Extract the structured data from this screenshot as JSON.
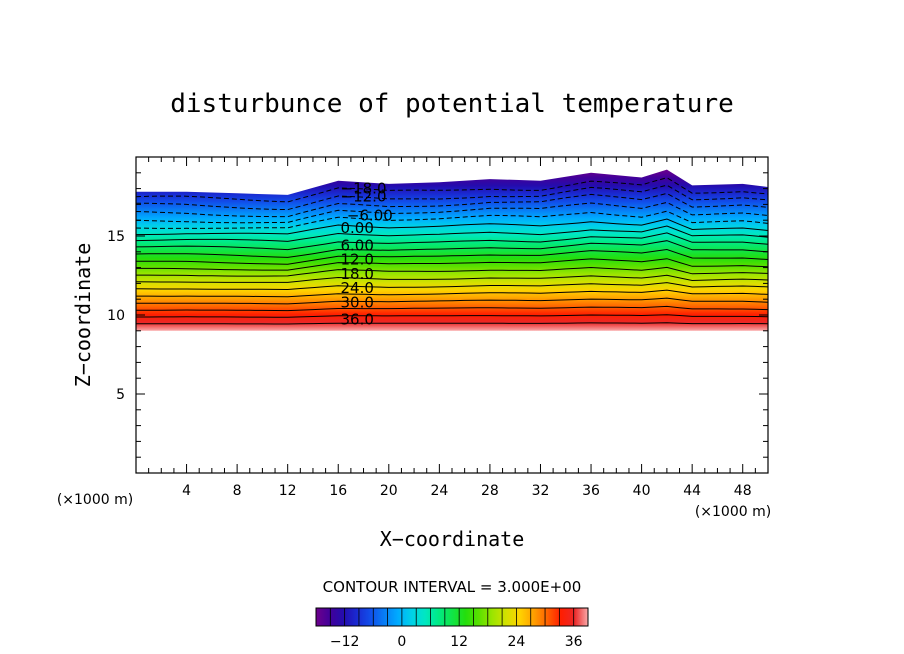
{
  "chart_data": {
    "type": "contour",
    "title": "disturbunce of potential temperature",
    "xlabel": "X−coordinate",
    "ylabel": "Z−coordinate",
    "x_unit": "(×1000 m)",
    "y_unit": "(×1000 m)",
    "xlim": [
      0,
      50
    ],
    "ylim": [
      0,
      20
    ],
    "x_ticks": [
      4,
      8,
      12,
      16,
      20,
      24,
      28,
      32,
      36,
      40,
      44,
      48
    ],
    "y_ticks": [
      5,
      10,
      15
    ],
    "contour_interval_text": "CONTOUR INTERVAL = 3.000E+00",
    "contour_interval": 3.0,
    "contour_level_labels": [
      {
        "text": "−18.0",
        "x": 18.0,
        "z": 18.0
      },
      {
        "text": "−12.0",
        "x": 18.0,
        "z": 17.5
      },
      {
        "text": "−6.00",
        "x": 18.5,
        "z": 16.3
      },
      {
        "text": "0.00",
        "x": 17.5,
        "z": 15.5
      },
      {
        "text": "6.00",
        "x": 17.5,
        "z": 14.4
      },
      {
        "text": "12.0",
        "x": 17.5,
        "z": 13.5
      },
      {
        "text": "18.0",
        "x": 17.5,
        "z": 12.6
      },
      {
        "text": "24.0",
        "x": 17.5,
        "z": 11.7
      },
      {
        "text": "30.0",
        "x": 17.5,
        "z": 10.8
      },
      {
        "text": "36.0",
        "x": 17.5,
        "z": 9.7
      }
    ],
    "field_bottom_z": 9.0,
    "field_top_profile": [
      [
        0,
        17.8
      ],
      [
        4,
        17.8
      ],
      [
        8,
        17.7
      ],
      [
        12,
        17.6
      ],
      [
        16,
        18.5
      ],
      [
        20,
        18.3
      ],
      [
        24,
        18.4
      ],
      [
        28,
        18.6
      ],
      [
        32,
        18.5
      ],
      [
        36,
        19.0
      ],
      [
        40,
        18.7
      ],
      [
        42,
        19.2
      ],
      [
        44,
        18.2
      ],
      [
        48,
        18.3
      ],
      [
        50,
        18.1
      ]
    ],
    "colorbar": {
      "min": -18,
      "max": 39,
      "ticks": [
        -12,
        0,
        12,
        24,
        36
      ],
      "colormap": "rainbow"
    },
    "grid": false,
    "legend": "none"
  }
}
